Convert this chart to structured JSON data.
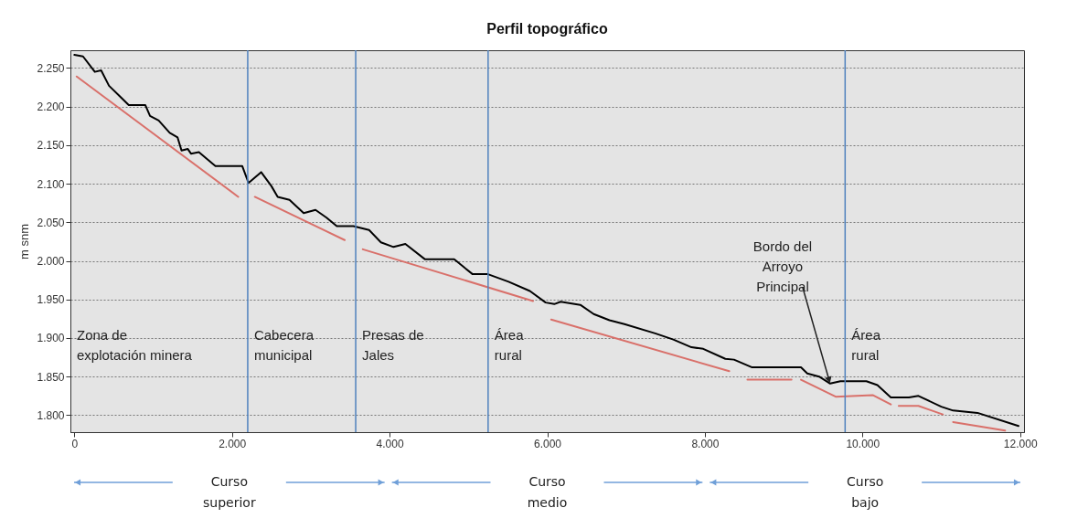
{
  "chart_data": {
    "type": "line",
    "title": "Perfil topográfico",
    "ylabel": "m snm",
    "xlim": [
      -50,
      12050
    ],
    "ylim": [
      1778,
      2273
    ],
    "xticks": [
      0,
      {
        "value": 2000,
        "label": "2.000"
      },
      {
        "value": 4000,
        "label": "4.000"
      },
      {
        "value": 6000,
        "label": "6.000"
      },
      {
        "value": 8000,
        "label": "8.000"
      },
      {
        "value": 10000,
        "label": "10.000"
      },
      {
        "value": 12000,
        "label": "12.000"
      }
    ],
    "yticks": [
      {
        "value": 1800,
        "label": "1.800"
      },
      {
        "value": 1850,
        "label": "1.850"
      },
      {
        "value": 1900,
        "label": "1.900"
      },
      {
        "value": 1950,
        "label": "1.950"
      },
      {
        "value": 2000,
        "label": "2.000"
      },
      {
        "value": 2050,
        "label": "2.050"
      },
      {
        "value": 2100,
        "label": "2.100"
      },
      {
        "value": 2150,
        "label": "2.150"
      },
      {
        "value": 2200,
        "label": "2.200"
      },
      {
        "value": 2250,
        "label": "2.250"
      }
    ],
    "grid": "y",
    "series": [
      {
        "color": "#000000",
        "x": [
          0,
          110,
          260,
          340,
          440,
          590,
          690,
          900,
          960,
          1070,
          1210,
          1310,
          1360,
          1440,
          1480,
          1580,
          1790,
          1920,
          2130,
          2210,
          2370,
          2500,
          2580,
          2730,
          2910,
          3060,
          3200,
          3330,
          3540,
          3740,
          3890,
          4050,
          4200,
          4450,
          4820,
          5050,
          5240,
          5510,
          5780,
          5980,
          6090,
          6170,
          6420,
          6590,
          6790,
          6980,
          7370,
          7600,
          7830,
          7980,
          8260,
          8370,
          8600,
          9220,
          9300,
          9450,
          9590,
          9720,
          10050,
          10190,
          10360,
          10590,
          10710,
          11000,
          11150,
          11460,
          11980
        ],
        "values": [
          2267,
          2265,
          2245,
          2247,
          2227,
          2212,
          2202,
          2202,
          2188,
          2182,
          2166,
          2160,
          2143,
          2145,
          2139,
          2141,
          2123,
          2123,
          2123,
          2101,
          2115,
          2097,
          2083,
          2079,
          2062,
          2066,
          2056,
          2045,
          2045,
          2040,
          2024,
          2018,
          2022,
          2002,
          2002,
          1983,
          1983,
          1973,
          1961,
          1946,
          1944,
          1947,
          1943,
          1931,
          1923,
          1918,
          1906,
          1898,
          1888,
          1886,
          1873,
          1872,
          1862,
          1862,
          1854,
          1850,
          1841,
          1844,
          1844,
          1839,
          1823,
          1823,
          1825,
          1811,
          1806,
          1803,
          1786
        ]
      },
      {
        "color": "#d9706a",
        "x": [
          30,
          2080,
          2180,
          2290,
          3430,
          3540,
          3660,
          5820,
          5930,
          6050,
          8310,
          8420,
          8540,
          9100,
          9160,
          9220,
          9660,
          10130,
          10360,
          10410,
          10460,
          10710,
          11020,
          11080,
          11150,
          11810
        ],
        "values": [
          2239,
          2083,
          null,
          2083,
          2027,
          null,
          2015,
          1948,
          null,
          1924,
          1857,
          null,
          1846,
          1846,
          null,
          1846,
          1824,
          1826,
          1814,
          null,
          1812,
          1812,
          1801,
          null,
          1791,
          1780
        ]
      }
    ],
    "ref_lines": [
      {
        "axis": "x",
        "value": 2200,
        "color": "#4f81bd"
      },
      {
        "axis": "x",
        "value": 3570,
        "color": "#4f81bd"
      },
      {
        "axis": "x",
        "value": 5250,
        "color": "#4f81bd"
      },
      {
        "axis": "x",
        "value": 9780,
        "color": "#4f81bd"
      }
    ],
    "annotations": [
      "Zona de\nexplotación minera",
      "Cabecera\nmunicipal",
      "Presas de\nJales",
      "Área\nrural",
      {
        "text": "Bordo del\nArroyo\nPrincipal",
        "x": 9590,
        "y": 1841
      },
      "Área\nrural",
      "Curso\nsuperior",
      "Curso\nmedio",
      "Curso\nbajo"
    ]
  }
}
